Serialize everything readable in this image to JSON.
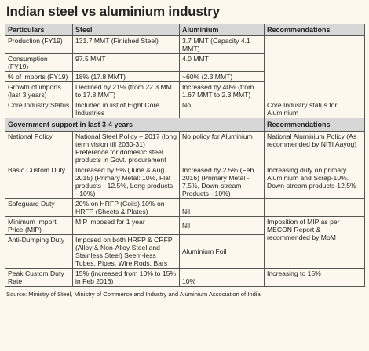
{
  "title": "Indian steel vs aluminium industry",
  "headers": [
    "Particulars",
    "Steel",
    "Aluminium",
    "Recommendations"
  ],
  "rows": [
    {
      "particular": "Production (FY19)",
      "steel": "131.7 MMT (Finished Steel)",
      "aluminium": "3.7 MMT (Capacity 4.1 MMT)",
      "rec": ""
    },
    {
      "particular": "Consumption (FY19)",
      "steel": "97.5 MMT",
      "aluminium": "4.0 MMT",
      "rec": ""
    },
    {
      "particular": "% of imports (FY19)",
      "steel": "18% (17.8 MMT)",
      "aluminium": "~60% (2.3 MMT)",
      "rec": ""
    },
    {
      "particular": "Growth of imports (last 3 years)",
      "steel": "Declined by 21% (from 22.3 MMT to 17.8 MMT)",
      "aluminium": "Increased by 40% (from 1.67 MMT to 2.3 MMT)",
      "rec": ""
    },
    {
      "particular": "Core Industry Status",
      "steel": "Included in list of Eight Core Industries",
      "aluminium": "No",
      "rec": "Core Industry status for Aluminium"
    }
  ],
  "section": {
    "label": "Government support in last 3-4 years",
    "rec": "Recommendations"
  },
  "support": {
    "national_policy": {
      "particular": "National Policy",
      "steel": "National Steel Policy – 2017 (long term vision till 2030-31) Preference for domestic steel products in Govt. procurement",
      "aluminium": "No policy for Aluminium",
      "rec": "National Aluminium Policy (As recommended by NITI Aayog)"
    },
    "basic_custom_duty": {
      "particular": "Basic Custom Duty",
      "steel": "Increased by 5% (June & Aug. 2015) (Primary Metal: 10%, Flat products - 12.5%, Long products - 10%)",
      "aluminium": "Increased by 2.5% (Feb 2016) (Primary Metal - 7.5%, Down-stream Products - 10%)",
      "rec": "Increasing duty on primary Aluminium and Scrap-10%. Down-stream products-12.5%"
    },
    "safeguard_duty": {
      "particular": "Safeguard Duty",
      "steel": "20% on HRFP (Coils) 10% on HRFP (Sheets & Plates)",
      "aluminium": "Nil"
    },
    "mip": {
      "particular": "Minimum Import Price (MIP)",
      "steel": "MIP imposed for 1 year",
      "aluminium": "Nil"
    },
    "mip_rec": "Imposition of MIP as per MECON Report & recommended by MoM",
    "anti_dumping": {
      "particular": "Anti-Dumping Duty",
      "steel": "Imposed on both HRFP & CRFP (Alloy & Non-Alloy Steel and Stainless Steel) Seem-less Tubes, Pipes, Wire Rods, Bars",
      "aluminium": "Aluminium Foil"
    },
    "peak_duty": {
      "particular": "Peak Custom Duty Rate",
      "steel": "15% (increased from 10% to 15% in Feb 2016)",
      "aluminium": "10%",
      "rec": "Increasing to 15%"
    }
  },
  "source": "Source: Ministry of Steel, Ministry of Commerce and Industry and Aluminium Association of India"
}
